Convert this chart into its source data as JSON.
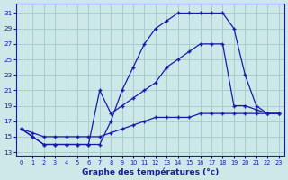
{
  "xlabel": "Graphe des températures (°c)",
  "background_color": "#cde8e8",
  "grid_color": "#a8cece",
  "line_color": "#1a1aaa",
  "xlim": [
    -0.5,
    23.5
  ],
  "ylim": [
    12.5,
    32.2
  ],
  "xticks": [
    0,
    1,
    2,
    3,
    4,
    5,
    6,
    7,
    8,
    9,
    10,
    11,
    12,
    13,
    14,
    15,
    16,
    17,
    18,
    19,
    20,
    21,
    22,
    23
  ],
  "yticks": [
    13,
    15,
    17,
    19,
    21,
    23,
    25,
    27,
    29,
    31
  ],
  "series1_x": [
    0,
    1,
    2,
    3,
    4,
    5,
    6,
    7,
    8,
    9,
    10,
    11,
    12,
    13,
    14,
    15,
    16,
    17,
    18,
    19,
    20,
    21,
    22,
    23
  ],
  "series1_y": [
    16,
    15.5,
    15,
    15,
    15,
    15,
    15,
    15,
    15.5,
    16,
    16.5,
    17,
    17.5,
    17.5,
    17.5,
    17.5,
    18,
    18,
    18,
    18,
    18,
    18,
    18,
    18
  ],
  "series2_x": [
    0,
    1,
    2,
    3,
    4,
    5,
    6,
    7,
    8,
    9,
    10,
    11,
    12,
    13,
    14,
    15,
    16,
    17,
    18,
    19,
    20,
    21,
    22,
    23
  ],
  "series2_y": [
    16,
    15,
    14,
    14,
    14,
    14,
    14,
    21,
    18,
    19,
    20,
    21,
    22,
    24,
    25,
    26,
    27,
    27,
    27,
    19,
    19,
    18.5,
    18,
    18
  ],
  "series3_x": [
    0,
    1,
    2,
    3,
    4,
    5,
    6,
    7,
    8,
    9,
    10,
    11,
    12,
    13,
    14,
    15,
    16,
    17,
    18,
    19,
    20,
    21,
    22,
    23
  ],
  "series3_y": [
    16,
    15,
    14,
    14,
    14,
    14,
    14,
    14,
    17,
    21,
    24,
    27,
    29,
    30,
    31,
    31,
    31,
    31,
    31,
    29,
    23,
    19,
    18,
    18
  ]
}
